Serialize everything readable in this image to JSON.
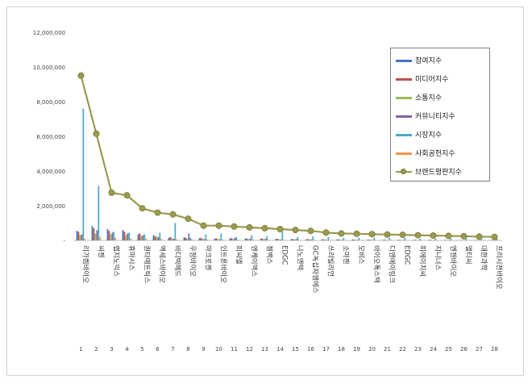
{
  "chart_data": {
    "type": "bar",
    "title": "",
    "xlabel": "",
    "ylabel": "",
    "ylim": [
      0,
      12000000
    ],
    "yticks": [
      0,
      2000000,
      4000000,
      6000000,
      8000000,
      10000000,
      12000000
    ],
    "ytick_labels": [
      "-",
      "2,000,000",
      "4,000,000",
      "6,000,000",
      "8,000,000",
      "10,000,000",
      "12,000,000"
    ],
    "grid": false,
    "legend_position": "top-right",
    "ranks": [
      "1",
      "2",
      "3",
      "4",
      "5",
      "6",
      "7",
      "8",
      "9",
      "10",
      "11",
      "12",
      "13",
      "14",
      "15",
      "16",
      "17",
      "18",
      "19",
      "20",
      "21",
      "22",
      "23",
      "24",
      "25",
      "26",
      "27",
      "28"
    ],
    "categories": [
      "리가켐바이오",
      "씨젠",
      "랩지노믹스",
      "휴마시스",
      "퀀타매트릭스",
      "엑세스바이오",
      "바디텍메드",
      "우정바이오",
      "마크로젠",
      "인트론바이오",
      "피씨엘",
      "엔케이맥스",
      "젬백스",
      "EDGC",
      "나노엔텍",
      "GC녹십자엠에스",
      "쓰리빌리언",
      "소마젠",
      "모비스",
      "바이오톡스텍",
      "디엔에이링크",
      "EDGC",
      "피에이치씨",
      "지니너스",
      "엔젠바이오",
      "엘티씨",
      "대한과학",
      "프리시젼바이오"
    ],
    "series": [
      {
        "name": "참여지수",
        "color": "#4472c4",
        "values": [
          550000,
          830000,
          650000,
          600000,
          350000,
          300000,
          150000,
          180000,
          120000,
          100000,
          120000,
          110000,
          90000,
          90000,
          80000,
          70000,
          60000,
          60000,
          50000,
          50000,
          40000,
          40000,
          30000,
          30000,
          30000,
          20000,
          20000,
          20000
        ]
      },
      {
        "name": "미디어지수",
        "color": "#c0504d",
        "values": [
          500000,
          700000,
          550000,
          500000,
          400000,
          250000,
          200000,
          150000,
          150000,
          120000,
          130000,
          100000,
          110000,
          90000,
          80000,
          70000,
          60000,
          50000,
          50000,
          40000,
          40000,
          30000,
          30000,
          30000,
          20000,
          20000,
          20000,
          20000
        ]
      },
      {
        "name": "소통지수",
        "color": "#9bbb59",
        "values": [
          300000,
          400000,
          350000,
          300000,
          250000,
          200000,
          120000,
          100000,
          90000,
          80000,
          70000,
          70000,
          60000,
          60000,
          50000,
          50000,
          40000,
          40000,
          30000,
          30000,
          30000,
          20000,
          20000,
          20000,
          20000,
          20000,
          10000,
          10000
        ]
      },
      {
        "name": "커뮤니티지수",
        "color": "#8064a2",
        "values": [
          350000,
          600000,
          450000,
          400000,
          300000,
          200000,
          100000,
          400000,
          80000,
          60000,
          150000,
          100000,
          100000,
          50000,
          80000,
          60000,
          30000,
          30000,
          30000,
          30000,
          20000,
          20000,
          20000,
          20000,
          20000,
          10000,
          10000,
          10000
        ]
      },
      {
        "name": "시장지수",
        "color": "#4bacc6",
        "values": [
          7600000,
          3150000,
          500000,
          450000,
          350000,
          450000,
          1000000,
          150000,
          350000,
          400000,
          200000,
          300000,
          250000,
          500000,
          200000,
          250000,
          200000,
          150000,
          150000,
          150000,
          150000,
          150000,
          100000,
          100000,
          100000,
          100000,
          80000,
          80000
        ]
      },
      {
        "name": "사회공헌지수",
        "color": "#f79646",
        "values": [
          100000,
          200000,
          150000,
          100000,
          100000,
          80000,
          60000,
          60000,
          50000,
          50000,
          40000,
          40000,
          40000,
          30000,
          30000,
          30000,
          20000,
          20000,
          20000,
          20000,
          20000,
          10000,
          10000,
          10000,
          10000,
          10000,
          10000,
          10000
        ]
      },
      {
        "name": "브랜드평판지수",
        "color": "#9a9a50",
        "type": "line",
        "values": [
          9500000,
          6150000,
          2750000,
          2600000,
          1850000,
          1600000,
          1500000,
          1250000,
          850000,
          850000,
          800000,
          750000,
          700000,
          650000,
          600000,
          550000,
          450000,
          400000,
          380000,
          360000,
          340000,
          320000,
          300000,
          280000,
          260000,
          240000,
          220000,
          200000
        ]
      }
    ]
  }
}
